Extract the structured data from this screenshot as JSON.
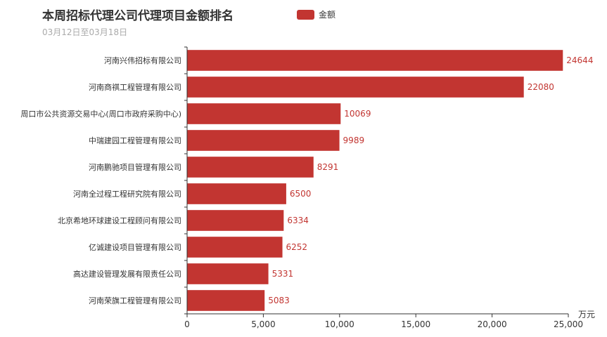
{
  "header": {
    "title": "本周招标代理公司代理项目金额排名",
    "subtitle": "03月12日至03月18日"
  },
  "legend": {
    "label": "金额"
  },
  "colors": {
    "bar": "#c23531",
    "axis": "#333333",
    "text": "#333333",
    "label": "#c23531"
  },
  "chart_data": {
    "type": "bar",
    "orientation": "horizontal",
    "title": "本周招标代理公司代理项目金额排名",
    "subtitle": "03月12日至03月18日",
    "categories": [
      "河南兴伟招标有限公司",
      "河南商祺工程管理有限公司",
      "周口市公共资源交易中心(周口市政府采购中心)",
      "中瑞建园工程管理有限公司",
      "河南鹏驰项目管理有限公司",
      "河南全过程工程研究院有限公司",
      "北京希地环球建设工程顾问有限公司",
      "亿诚建设项目管理有限公司",
      "高达建设管理发展有限责任公司",
      "河南荣旗工程管理有限公司"
    ],
    "series": [
      {
        "name": "金额",
        "values": [
          24644,
          22080,
          10069,
          9989,
          8291,
          6500,
          6334,
          6252,
          5331,
          5083
        ]
      }
    ],
    "xlabel": "万元",
    "xlim": [
      0,
      25000
    ],
    "xticks": [
      0,
      5000,
      10000,
      15000,
      20000,
      25000
    ],
    "xtick_labels": [
      "0",
      "5,000",
      "10,000",
      "15,000",
      "20,000",
      "25,000"
    ],
    "grid": false,
    "legend_position": "top"
  }
}
